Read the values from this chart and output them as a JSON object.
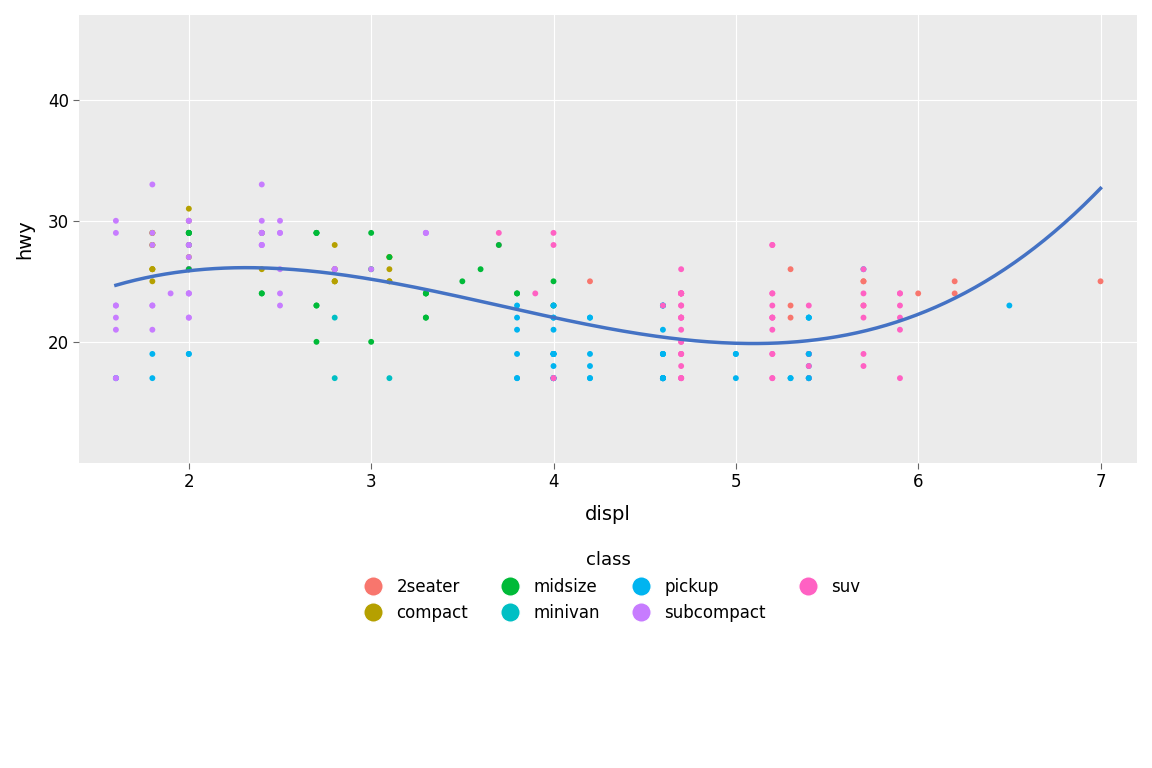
{
  "title": "",
  "xlabel": "displ",
  "ylabel": "hwy",
  "bg_color": "#EBEBEB",
  "grid_color": "#FFFFFF",
  "smooth_color": "#4472C4",
  "smooth_lw": 2.5,
  "point_size": 18,
  "xlim": [
    1.4,
    7.2
  ],
  "ylim": [
    10,
    47
  ],
  "xticks": [
    2,
    3,
    4,
    5,
    6,
    7
  ],
  "yticks": [
    20,
    30,
    40
  ],
  "colors": {
    "2seater": "#F8766D",
    "compact": "#B5A000",
    "midsize": "#00BA38",
    "minivan": "#00BFC4",
    "pickup": "#00B4F0",
    "subcompact": "#C77CFF",
    "suv": "#FF61C3"
  },
  "displ": [
    1.8,
    1.8,
    2.0,
    2.0,
    2.8,
    2.8,
    3.1,
    1.8,
    1.8,
    2.0,
    2.0,
    2.8,
    2.8,
    3.1,
    3.1,
    2.8,
    3.1,
    4.2,
    5.3,
    5.3,
    5.3,
    5.7,
    6.0,
    5.7,
    5.7,
    6.2,
    6.2,
    7.0,
    5.3,
    5.3,
    5.7,
    6.5,
    2.4,
    2.4,
    3.1,
    3.5,
    3.6,
    2.4,
    3.0,
    3.3,
    3.3,
    3.3,
    3.3,
    3.3,
    3.8,
    3.8,
    4.0,
    1.8,
    1.8,
    2.0,
    2.0,
    2.8,
    2.8,
    3.1,
    1.8,
    1.8,
    2.0,
    2.4,
    2.4,
    2.0,
    2.0,
    2.0,
    2.8,
    1.9,
    2.0,
    2.0,
    2.0,
    2.0,
    2.0,
    2.5,
    2.5,
    3.3,
    2.0,
    2.0,
    2.0,
    2.8,
    2.8,
    3.0,
    3.7,
    4.0,
    4.7,
    4.7,
    4.7,
    5.2,
    5.2,
    3.9,
    4.7,
    4.7,
    4.7,
    5.2,
    5.7,
    5.9,
    4.7,
    4.7,
    4.7,
    4.7,
    4.7,
    4.7,
    5.2,
    5.2,
    5.7,
    5.9,
    4.6,
    5.4,
    5.4,
    4.0,
    4.0,
    4.0,
    4.0,
    4.6,
    5.0,
    4.2,
    4.2,
    4.6,
    4.6,
    4.6,
    5.4,
    5.4,
    3.8,
    3.8,
    4.0,
    4.0,
    4.6,
    4.6,
    5.4,
    1.6,
    1.6,
    1.6,
    1.6,
    1.6,
    1.8,
    1.8,
    1.8,
    2.0,
    2.4,
    2.4,
    2.4,
    2.4,
    2.5,
    2.5,
    3.3,
    2.0,
    2.0,
    2.0,
    2.0,
    2.7,
    2.7,
    2.7,
    3.0,
    3.7,
    4.0,
    4.7,
    4.7,
    4.7,
    5.2,
    5.2,
    5.7,
    5.9,
    4.7,
    4.7,
    4.7,
    4.7,
    5.2,
    5.2,
    5.7,
    5.9,
    4.6,
    5.4,
    5.4,
    5.4,
    4.0,
    4.0,
    4.0,
    4.0,
    4.6,
    5.0,
    4.2,
    4.2,
    4.6,
    4.6,
    4.6,
    5.4,
    5.4,
    3.8,
    3.8,
    4.0,
    4.0,
    4.0,
    4.6,
    4.6,
    5.4,
    1.6,
    1.6,
    1.6,
    1.6,
    1.6,
    1.8,
    1.8,
    1.8,
    2.0,
    2.4,
    2.4,
    2.4,
    2.4,
    2.5,
    2.5,
    3.3,
    2.0,
    2.0,
    2.0,
    2.0,
    2.7,
    2.7,
    2.7,
    3.0,
    3.7,
    4.0,
    4.7,
    4.7,
    4.7,
    5.2,
    5.2,
    5.7,
    5.9,
    4.7,
    4.7,
    4.7,
    4.7,
    5.2,
    5.2,
    5.7,
    5.9,
    4.6,
    5.4,
    5.4,
    5.4,
    4.0,
    4.0,
    4.0,
    4.0,
    4.6,
    5.0,
    4.2,
    4.2,
    4.6,
    4.6,
    4.6,
    5.4,
    5.4,
    3.8,
    3.8,
    4.0,
    4.0,
    4.0,
    4.6,
    4.6,
    5.4,
    1.8,
    1.8,
    2.0,
    2.0,
    2.8,
    2.8,
    3.1
  ],
  "hwy": [
    29,
    29,
    31,
    30,
    26,
    26,
    27,
    26,
    25,
    28,
    27,
    25,
    25,
    25,
    25,
    25,
    27,
    25,
    23,
    26,
    22,
    25,
    24,
    25,
    23,
    25,
    24,
    25,
    17,
    17,
    26,
    23,
    24,
    24,
    27,
    25,
    26,
    29,
    26,
    24,
    24,
    22,
    22,
    24,
    24,
    24,
    25,
    26,
    28,
    26,
    29,
    28,
    26,
    26,
    26,
    28,
    26,
    29,
    26,
    27,
    30,
    29,
    26,
    24,
    24,
    22,
    22,
    24,
    24,
    23,
    24,
    29,
    26,
    26,
    26,
    26,
    26,
    26,
    29,
    29,
    24,
    24,
    24,
    24,
    22,
    24,
    24,
    17,
    22,
    21,
    23,
    23,
    19,
    18,
    17,
    17,
    19,
    19,
    17,
    19,
    19,
    22,
    17,
    17,
    17,
    17,
    22,
    21,
    23,
    23,
    19,
    18,
    17,
    17,
    19,
    19,
    17,
    19,
    19,
    22,
    17,
    17,
    17,
    17,
    22,
    21,
    23,
    23,
    30,
    29,
    29,
    28,
    33,
    29,
    30,
    29,
    28,
    28,
    26,
    29,
    29,
    29,
    29,
    29,
    28,
    23,
    23,
    20,
    20,
    28,
    28,
    26,
    24,
    24,
    22,
    22,
    24,
    24,
    17,
    22,
    21,
    23,
    23,
    19,
    18,
    17,
    17,
    19,
    19,
    17,
    19,
    19,
    22,
    17,
    17,
    17,
    17,
    22,
    21,
    23,
    23,
    19,
    18,
    17,
    17,
    19,
    19,
    17,
    19,
    19,
    22,
    17,
    17,
    17,
    17,
    22,
    21,
    23,
    23,
    30,
    29,
    29,
    28,
    33,
    29,
    30,
    29,
    28,
    28,
    26,
    29,
    29,
    29,
    29,
    29,
    28,
    23,
    23,
    20,
    20,
    28,
    28,
    26,
    24,
    24,
    22,
    22,
    24,
    24,
    17,
    22,
    21,
    23,
    23,
    19,
    18,
    17,
    17,
    19,
    19,
    17,
    19,
    19,
    22,
    17,
    17,
    17,
    17,
    22,
    21,
    23,
    23,
    19,
    18,
    17,
    17,
    19,
    19,
    17,
    19,
    19,
    22,
    17,
    17,
    17,
    17,
    22,
    21,
    23,
    30,
    29,
    29,
    28,
    26,
    25,
    27
  ],
  "class": [
    "compact",
    "compact",
    "compact",
    "compact",
    "compact",
    "compact",
    "compact",
    "compact",
    "compact",
    "compact",
    "compact",
    "compact",
    "compact",
    "compact",
    "compact",
    "compact",
    "compact",
    "2seater",
    "2seater",
    "2seater",
    "2seater",
    "2seater",
    "2seater",
    "2seater",
    "2seater",
    "2seater",
    "2seater",
    "2seater",
    "pickup",
    "pickup",
    "pickup",
    "pickup",
    "midsize",
    "midsize",
    "midsize",
    "midsize",
    "midsize",
    "midsize",
    "midsize",
    "midsize",
    "midsize",
    "midsize",
    "midsize",
    "midsize",
    "midsize",
    "midsize",
    "midsize",
    "compact",
    "compact",
    "compact",
    "compact",
    "compact",
    "compact",
    "compact",
    "compact",
    "compact",
    "compact",
    "compact",
    "compact",
    "subcompact",
    "subcompact",
    "subcompact",
    "subcompact",
    "subcompact",
    "subcompact",
    "subcompact",
    "subcompact",
    "subcompact",
    "subcompact",
    "subcompact",
    "subcompact",
    "subcompact",
    "subcompact",
    "subcompact",
    "subcompact",
    "subcompact",
    "subcompact",
    "subcompact",
    "suv",
    "suv",
    "suv",
    "suv",
    "suv",
    "suv",
    "suv",
    "suv",
    "suv",
    "suv",
    "suv",
    "suv",
    "suv",
    "suv",
    "suv",
    "suv",
    "suv",
    "suv",
    "suv",
    "suv",
    "suv",
    "suv",
    "suv",
    "suv",
    "pickup",
    "pickup",
    "pickup",
    "pickup",
    "pickup",
    "pickup",
    "pickup",
    "pickup",
    "pickup",
    "pickup",
    "pickup",
    "pickup",
    "pickup",
    "pickup",
    "pickup",
    "pickup",
    "pickup",
    "pickup",
    "pickup",
    "pickup",
    "pickup",
    "pickup",
    "pickup",
    "subcompact",
    "subcompact",
    "subcompact",
    "subcompact",
    "subcompact",
    "subcompact",
    "subcompact",
    "subcompact",
    "subcompact",
    "subcompact",
    "subcompact",
    "subcompact",
    "subcompact",
    "subcompact",
    "subcompact",
    "subcompact",
    "midsize",
    "midsize",
    "midsize",
    "midsize",
    "midsize",
    "midsize",
    "midsize",
    "midsize",
    "suv",
    "suv",
    "suv",
    "suv",
    "suv",
    "suv",
    "suv",
    "suv",
    "suv",
    "suv",
    "suv",
    "suv",
    "suv",
    "suv",
    "suv",
    "suv",
    "suv",
    "suv",
    "suv",
    "suv",
    "suv",
    "pickup",
    "pickup",
    "pickup",
    "pickup",
    "pickup",
    "pickup",
    "pickup",
    "pickup",
    "pickup",
    "pickup",
    "pickup",
    "pickup",
    "pickup",
    "pickup",
    "pickup",
    "pickup",
    "pickup",
    "pickup",
    "pickup",
    "pickup",
    "pickup",
    "pickup",
    "pickup",
    "subcompact",
    "subcompact",
    "subcompact",
    "subcompact",
    "subcompact",
    "subcompact",
    "subcompact",
    "subcompact",
    "subcompact",
    "subcompact",
    "subcompact",
    "subcompact",
    "subcompact",
    "subcompact",
    "subcompact",
    "subcompact",
    "midsize",
    "midsize",
    "midsize",
    "midsize",
    "midsize",
    "midsize",
    "midsize",
    "midsize",
    "suv",
    "suv",
    "suv",
    "suv",
    "suv",
    "suv",
    "suv",
    "suv",
    "suv",
    "suv",
    "suv",
    "suv",
    "suv",
    "suv",
    "suv",
    "suv",
    "suv",
    "suv",
    "suv",
    "suv",
    "suv",
    "pickup",
    "pickup",
    "pickup",
    "pickup",
    "pickup",
    "pickup",
    "pickup",
    "pickup",
    "pickup",
    "pickup",
    "pickup",
    "pickup",
    "pickup",
    "pickup",
    "pickup",
    "pickup",
    "pickup",
    "pickup",
    "pickup",
    "pickup",
    "pickup",
    "pickup",
    "pickup",
    "minivan",
    "minivan",
    "minivan",
    "minivan",
    "minivan",
    "minivan",
    "minivan"
  ]
}
